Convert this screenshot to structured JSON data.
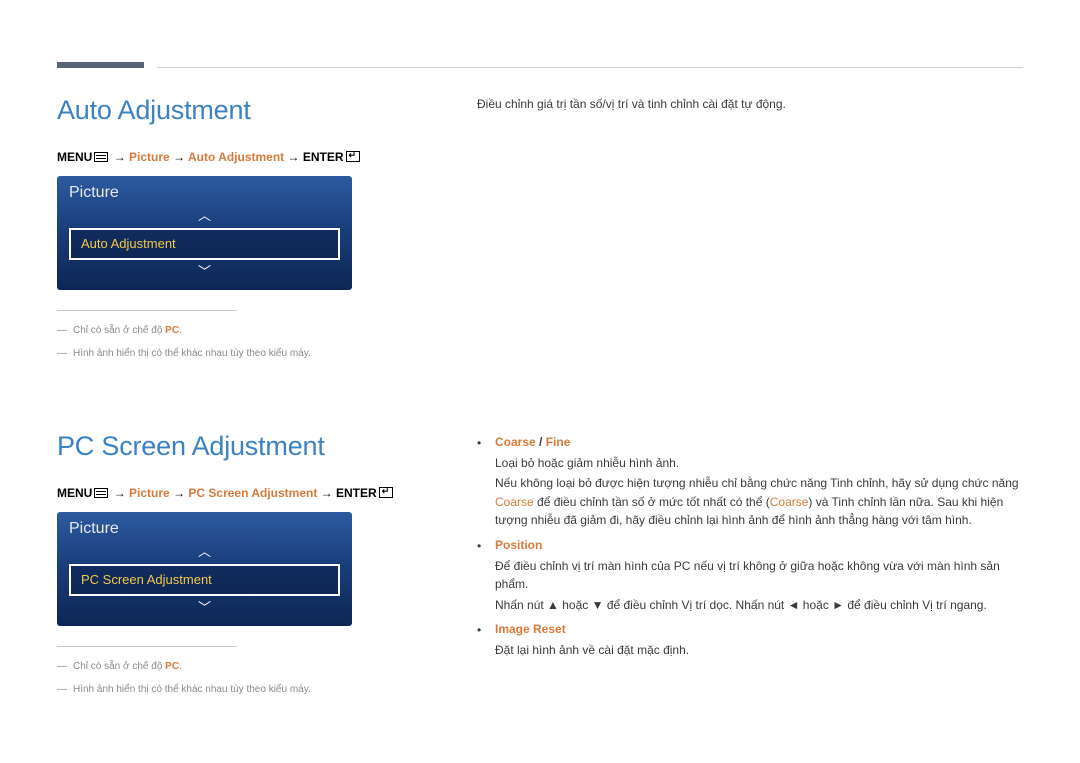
{
  "header": {
    "bar_color": "#5a6478"
  },
  "section1": {
    "title": "Auto Adjustment",
    "breadcrumb": {
      "menu_label": "MENU",
      "arrow": "→",
      "p1": "Picture",
      "p2": "Auto Adjustment",
      "enter_label": "ENTER"
    },
    "osd": {
      "title": "Picture",
      "selected": "Auto Adjustment"
    },
    "notes": {
      "n1_pre": "Chỉ có sẵn ở chế độ ",
      "n1_pc": "PC",
      "n1_post": ".",
      "n2": "Hình ảnh hiển thị có thể khác nhau tùy theo kiểu máy."
    },
    "right_desc": "Điều chỉnh giá trị tần số/vị trí và tinh chỉnh cài đặt tự động."
  },
  "section2": {
    "title": "PC Screen Adjustment",
    "breadcrumb": {
      "menu_label": "MENU",
      "arrow": "→",
      "p1": "Picture",
      "p2": "PC Screen Adjustment",
      "enter_label": "ENTER"
    },
    "osd": {
      "title": "Picture",
      "selected": "PC Screen Adjustment"
    },
    "notes": {
      "n1_pre": "Chỉ có sẵn ở chế độ ",
      "n1_pc": "PC",
      "n1_post": ".",
      "n2": "Hình ảnh hiển thị có thể khác nhau tùy theo kiểu máy."
    },
    "bullets": {
      "coarse_fine": {
        "t1": "Coarse",
        "sep": " / ",
        "t2": "Fine",
        "l1": "Loại bỏ hoặc giảm nhiễu hình ảnh.",
        "l2a": "Nếu không loại bỏ được hiện tượng nhiễu chỉ bằng chức năng Tinh chỉnh, hãy sử dụng chức năng ",
        "l2b": "Coarse",
        "l2c": " để điều chỉnh tần số ở mức tốt nhất có thể (",
        "l2d": "Coarse",
        "l2e": ") và Tinh chỉnh lần nữa. Sau khi hiện tượng nhiễu đã giảm đi, hãy điều chỉnh lại hình ảnh để hình ảnh thẳng hàng với tâm hình."
      },
      "position": {
        "t": "Position",
        "l1": "Để điều chỉnh vị trí màn hình của PC nếu vị trí không ở giữa hoặc không vừa với màn hình sản phẩm.",
        "l2a": "Nhấn nút ▲ hoặc ▼ để điều chỉnh Vị trí dọc. Nhấn nút ◄ hoặc ► để điều chỉnh Vị trí ngang."
      },
      "image_reset": {
        "t": "Image Reset",
        "l1": "Đặt lại hình ảnh về cài đặt mặc định."
      }
    }
  }
}
